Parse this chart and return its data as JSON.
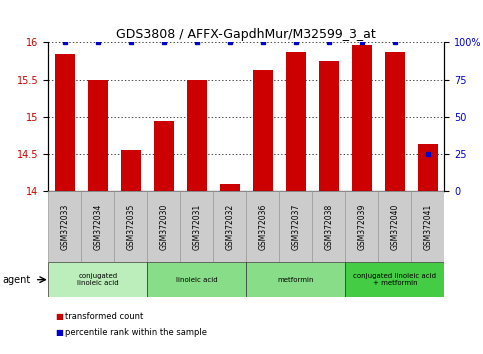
{
  "title": "GDS3808 / AFFX-GapdhMur/M32599_3_at",
  "samples": [
    "GSM372033",
    "GSM372034",
    "GSM372035",
    "GSM372030",
    "GSM372031",
    "GSM372032",
    "GSM372036",
    "GSM372037",
    "GSM372038",
    "GSM372039",
    "GSM372040",
    "GSM372041"
  ],
  "bar_values": [
    15.85,
    15.5,
    14.56,
    14.95,
    15.5,
    14.09,
    15.63,
    15.87,
    15.75,
    15.97,
    15.87,
    14.63
  ],
  "percentile_values": [
    100,
    100,
    100,
    100,
    100,
    100,
    100,
    100,
    100,
    100,
    100,
    25
  ],
  "bar_color": "#CC0000",
  "percentile_color": "#0000CC",
  "ylim_left": [
    14,
    16
  ],
  "ylim_right": [
    0,
    100
  ],
  "yticks_left": [
    14,
    14.5,
    15,
    15.5,
    16
  ],
  "yticks_right": [
    0,
    25,
    50,
    75,
    100
  ],
  "ytick_labels_left": [
    "14",
    "14.5",
    "15",
    "15.5",
    "16"
  ],
  "ytick_labels_right": [
    "0",
    "25",
    "50",
    "75",
    "100%"
  ],
  "groups": [
    {
      "label": "conjugated\nlinoleic acid",
      "start": 0,
      "end": 3,
      "color": "#bbeebb"
    },
    {
      "label": "linoleic acid",
      "start": 3,
      "end": 6,
      "color": "#88dd88"
    },
    {
      "label": "metformin",
      "start": 6,
      "end": 9,
      "color": "#88dd88"
    },
    {
      "label": "conjugated linoleic acid\n+ metformin",
      "start": 9,
      "end": 12,
      "color": "#44cc44"
    }
  ],
  "legend_items": [
    {
      "color": "#CC0000",
      "label": "transformed count"
    },
    {
      "color": "#0000CC",
      "label": "percentile rank within the sample"
    }
  ],
  "agent_label": "agent",
  "tick_label_color_left": "#CC0000",
  "tick_label_color_right": "#0000CC",
  "background_xlabels": "#cccccc"
}
